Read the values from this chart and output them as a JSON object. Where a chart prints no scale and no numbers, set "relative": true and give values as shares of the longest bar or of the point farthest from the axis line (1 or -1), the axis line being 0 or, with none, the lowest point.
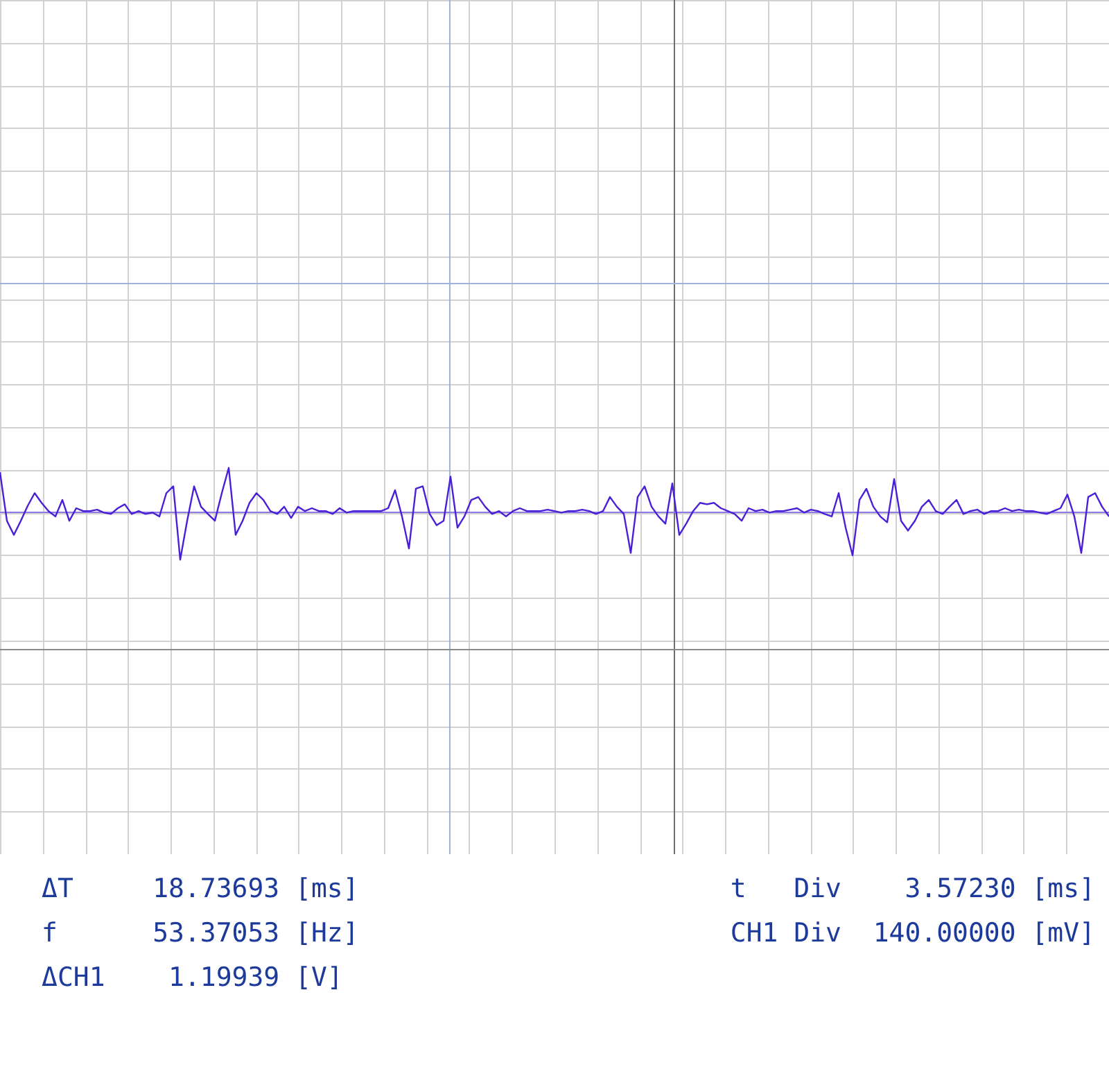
{
  "chart_data": {
    "type": "line",
    "relative": true,
    "grid": true,
    "legend": false,
    "categories": [
      null,
      null,
      null,
      null,
      null,
      null,
      null,
      null,
      null,
      null,
      null,
      null,
      null,
      null,
      null,
      null,
      null,
      null,
      null,
      null,
      null,
      null,
      null,
      null,
      null,
      null,
      null,
      null,
      null,
      null,
      null,
      null,
      null,
      null,
      null,
      null,
      null,
      null,
      null,
      null,
      null,
      null,
      null,
      null,
      null,
      null,
      null,
      null,
      null,
      null,
      null,
      null,
      null,
      null,
      null,
      null,
      null,
      null,
      null,
      null,
      null,
      null,
      null,
      null,
      null,
      null,
      null,
      null,
      null,
      null,
      null,
      null,
      null,
      null,
      null,
      null,
      null,
      null,
      null,
      null,
      null,
      null,
      null,
      null,
      null,
      null,
      null,
      null,
      null,
      null,
      null,
      null,
      null,
      null,
      null,
      null,
      null,
      null,
      null,
      null,
      null,
      null,
      null,
      null,
      null,
      null,
      null,
      null,
      null,
      null,
      null,
      null,
      null,
      null,
      null,
      null,
      null,
      null,
      null,
      null,
      null,
      null,
      null,
      null,
      null,
      null,
      null,
      null,
      null,
      null,
      null,
      null,
      null,
      null,
      null,
      null,
      null,
      null,
      null,
      null,
      null,
      null,
      null,
      null,
      null,
      null,
      null,
      null,
      null,
      null,
      null,
      null,
      null,
      null,
      null,
      null,
      null,
      null,
      null,
      null,
      null
    ],
    "series": [
      {
        "color": "#4b1fd6",
        "values": [
          0.8,
          -0.2,
          -0.49,
          -0.2,
          0.11,
          0.37,
          0.17,
          0,
          -0.11,
          0.23,
          -0.2,
          0.06,
          0,
          0,
          0.03,
          -0.03,
          -0.06,
          0.06,
          0.14,
          -0.06,
          0,
          -0.06,
          -0.03,
          -0.11,
          0.37,
          0.51,
          -1,
          -0.2,
          0.51,
          0.09,
          -0.06,
          -0.2,
          0.37,
          0.89,
          -0.49,
          -0.2,
          0.17,
          0.37,
          0.23,
          0,
          -0.06,
          0.09,
          -0.14,
          0.09,
          0,
          0.06,
          0,
          0,
          -0.06,
          0.06,
          -0.03,
          0,
          0,
          0,
          0,
          0,
          0.06,
          0.43,
          -0.11,
          -0.77,
          0.46,
          0.51,
          -0.06,
          -0.29,
          -0.2,
          0.71,
          -0.34,
          -0.11,
          0.23,
          0.29,
          0.09,
          -0.06,
          0,
          -0.11,
          0,
          0.06,
          0,
          0,
          0,
          0.03,
          0,
          -0.03,
          0,
          0,
          0.03,
          0,
          -0.06,
          0,
          0.29,
          0.09,
          -0.06,
          -0.86,
          0.29,
          0.51,
          0.09,
          -0.11,
          -0.26,
          0.57,
          -0.49,
          -0.26,
          0,
          0.17,
          0.14,
          0.17,
          0.06,
          0,
          -0.06,
          -0.2,
          0.06,
          0,
          0.03,
          -0.03,
          0,
          0,
          0.03,
          0.06,
          -0.03,
          0.03,
          0,
          -0.06,
          -0.11,
          0.37,
          -0.34,
          -0.91,
          0.23,
          0.46,
          0.09,
          -0.11,
          -0.23,
          0.66,
          -0.2,
          -0.4,
          -0.2,
          0.09,
          0.23,
          0,
          -0.06,
          0.09,
          0.23,
          -0.06,
          0,
          0.03,
          -0.06,
          0,
          0,
          0.06,
          0,
          0.03,
          0,
          0,
          -0.03,
          -0.06,
          0,
          0.06,
          0.34,
          -0.11,
          -0.86,
          0.29,
          0.37,
          0.09,
          -0.11
        ]
      }
    ],
    "ref_lines": [
      {
        "axis": "y",
        "value": 0,
        "color": "#8f78e8"
      },
      {
        "axis": "y",
        "value": 4.69,
        "color": "#9fb4dc"
      },
      {
        "axis": "y",
        "value": -2.83,
        "color": "#8a8a8a"
      }
    ],
    "annotations": [
      "ΔT     18.73693 [ms]",
      "f      53.37053 [Hz]",
      "ΔCH1    1.19939 [V]",
      "t   Div    3.57230 [ms]",
      "CH1 Div  140.00000 [mV]"
    ]
  }
}
